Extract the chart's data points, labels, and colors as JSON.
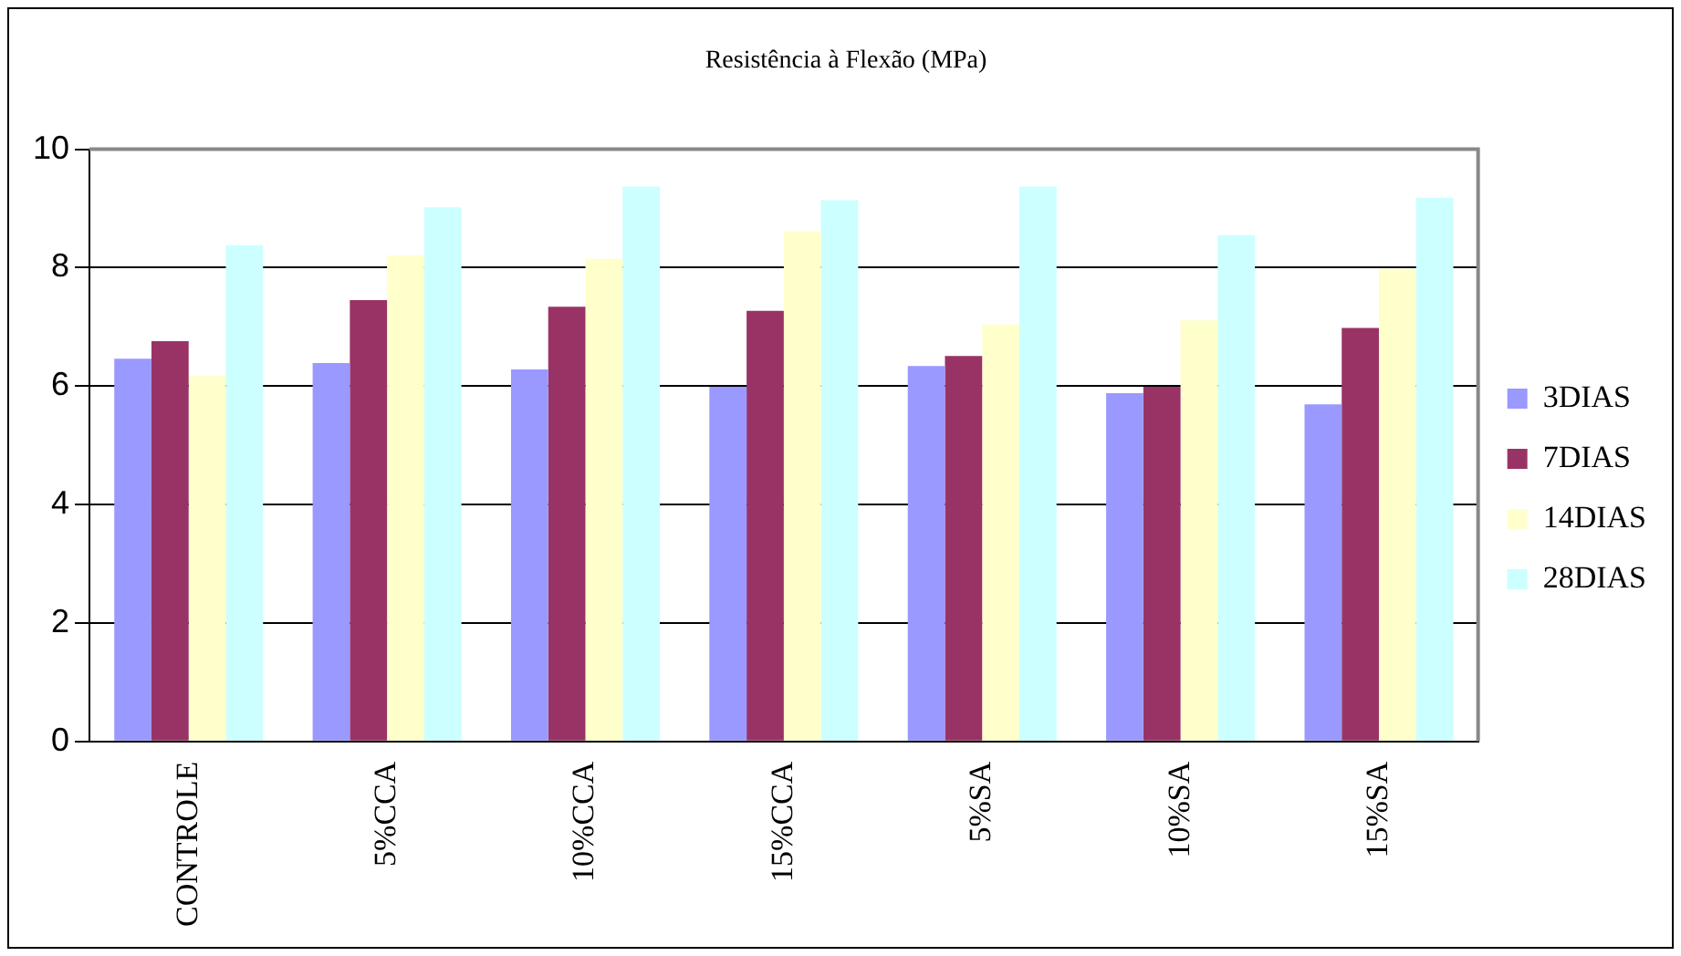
{
  "chart_data": {
    "type": "bar",
    "title": "Resistência à Flexão (MPa)",
    "categories": [
      "CONTROLE",
      "5%CCA",
      "10%CCA",
      "15%CCA",
      "5%SA",
      "10%SA",
      "15%SA"
    ],
    "series": [
      {
        "name": "3DIAS",
        "color": "#9999ff",
        "values": [
          6.46,
          6.39,
          6.28,
          5.99,
          6.34,
          5.88,
          5.69
        ]
      },
      {
        "name": "7DIAS",
        "color": "#993366",
        "values": [
          6.76,
          7.45,
          7.34,
          7.27,
          6.51,
          5.99,
          6.98
        ]
      },
      {
        "name": "14DIAS",
        "color": "#ffffcc",
        "values": [
          6.17,
          8.21,
          8.15,
          8.61,
          7.04,
          7.11,
          7.98
        ]
      },
      {
        "name": "28DIAS",
        "color": "#ccffff",
        "values": [
          8.38,
          9.02,
          9.37,
          9.14,
          9.37,
          8.55,
          9.18
        ]
      }
    ],
    "ylim": [
      0,
      10
    ],
    "yticks": [
      0,
      2,
      4,
      6,
      8,
      10
    ],
    "grid": "y",
    "legend": "right"
  }
}
